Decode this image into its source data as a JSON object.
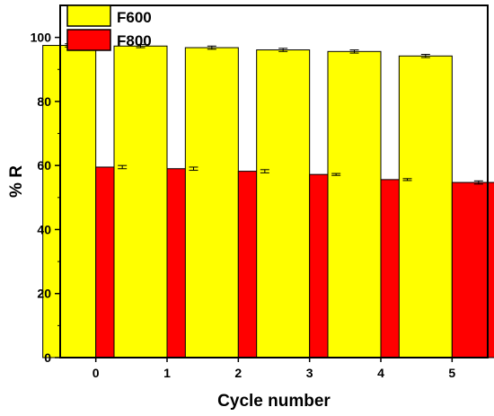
{
  "chart_data": {
    "type": "bar",
    "categories": [
      "0",
      "1",
      "2",
      "3",
      "4",
      "5"
    ],
    "series": [
      {
        "name": "F600",
        "color": "#ffff00",
        "values": [
          97.5,
          97.3,
          96.8,
          96.1,
          95.6,
          94.2
        ],
        "errors": [
          0.5,
          0.5,
          0.5,
          0.5,
          0.5,
          0.5
        ]
      },
      {
        "name": "F800",
        "color": "#ff0000",
        "values": [
          59.5,
          59.0,
          58.2,
          57.2,
          55.6,
          54.7
        ],
        "errors": [
          0.5,
          0.5,
          0.5,
          0.3,
          0.3,
          0.5
        ]
      }
    ],
    "xlabel": "Cycle number",
    "ylabel": "% R",
    "ylim": [
      0,
      110
    ],
    "yticks": [
      0,
      20,
      40,
      60,
      80,
      100
    ],
    "grid": false,
    "legend_position": "top-left"
  }
}
